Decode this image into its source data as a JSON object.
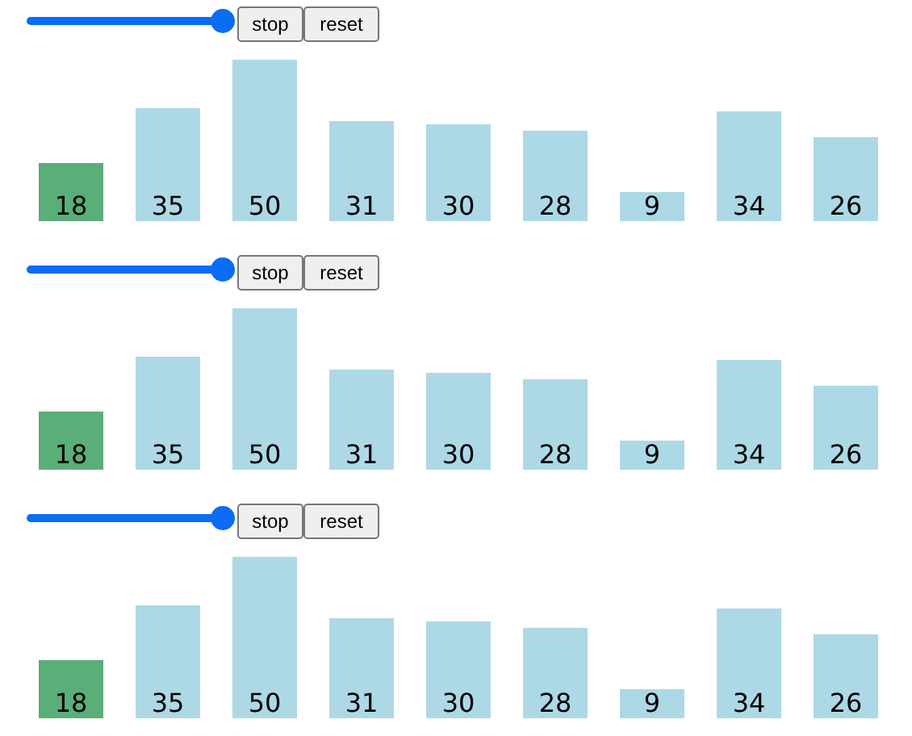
{
  "chart_data": [
    {
      "type": "bar",
      "categories": [
        null,
        null,
        null,
        null,
        null,
        null,
        null,
        null,
        null
      ],
      "values": [
        18,
        35,
        50,
        31,
        30,
        28,
        9,
        34,
        26
      ],
      "colors": [
        "#5aae78",
        "#add8e6",
        "#add8e6",
        "#add8e6",
        "#add8e6",
        "#add8e6",
        "#add8e6",
        "#add8e6",
        "#add8e6"
      ],
      "data_labels": true,
      "annotations": [
        "stop",
        "reset"
      ]
    },
    {
      "type": "bar",
      "categories": [
        null,
        null,
        null,
        null,
        null,
        null,
        null,
        null,
        null
      ],
      "values": [
        18,
        35,
        50,
        31,
        30,
        28,
        9,
        34,
        26
      ],
      "colors": [
        "#5aae78",
        "#add8e6",
        "#add8e6",
        "#add8e6",
        "#add8e6",
        "#add8e6",
        "#add8e6",
        "#add8e6",
        "#add8e6"
      ],
      "data_labels": true,
      "annotations": [
        "stop",
        "reset"
      ]
    },
    {
      "type": "bar",
      "categories": [
        null,
        null,
        null,
        null,
        null,
        null,
        null,
        null,
        null
      ],
      "values": [
        18,
        35,
        50,
        31,
        30,
        28,
        9,
        34,
        26
      ],
      "colors": [
        "#5aae78",
        "#add8e6",
        "#add8e6",
        "#add8e6",
        "#add8e6",
        "#add8e6",
        "#add8e6",
        "#add8e6",
        "#add8e6"
      ],
      "data_labels": true,
      "annotations": [
        "stop",
        "reset"
      ]
    }
  ]
}
